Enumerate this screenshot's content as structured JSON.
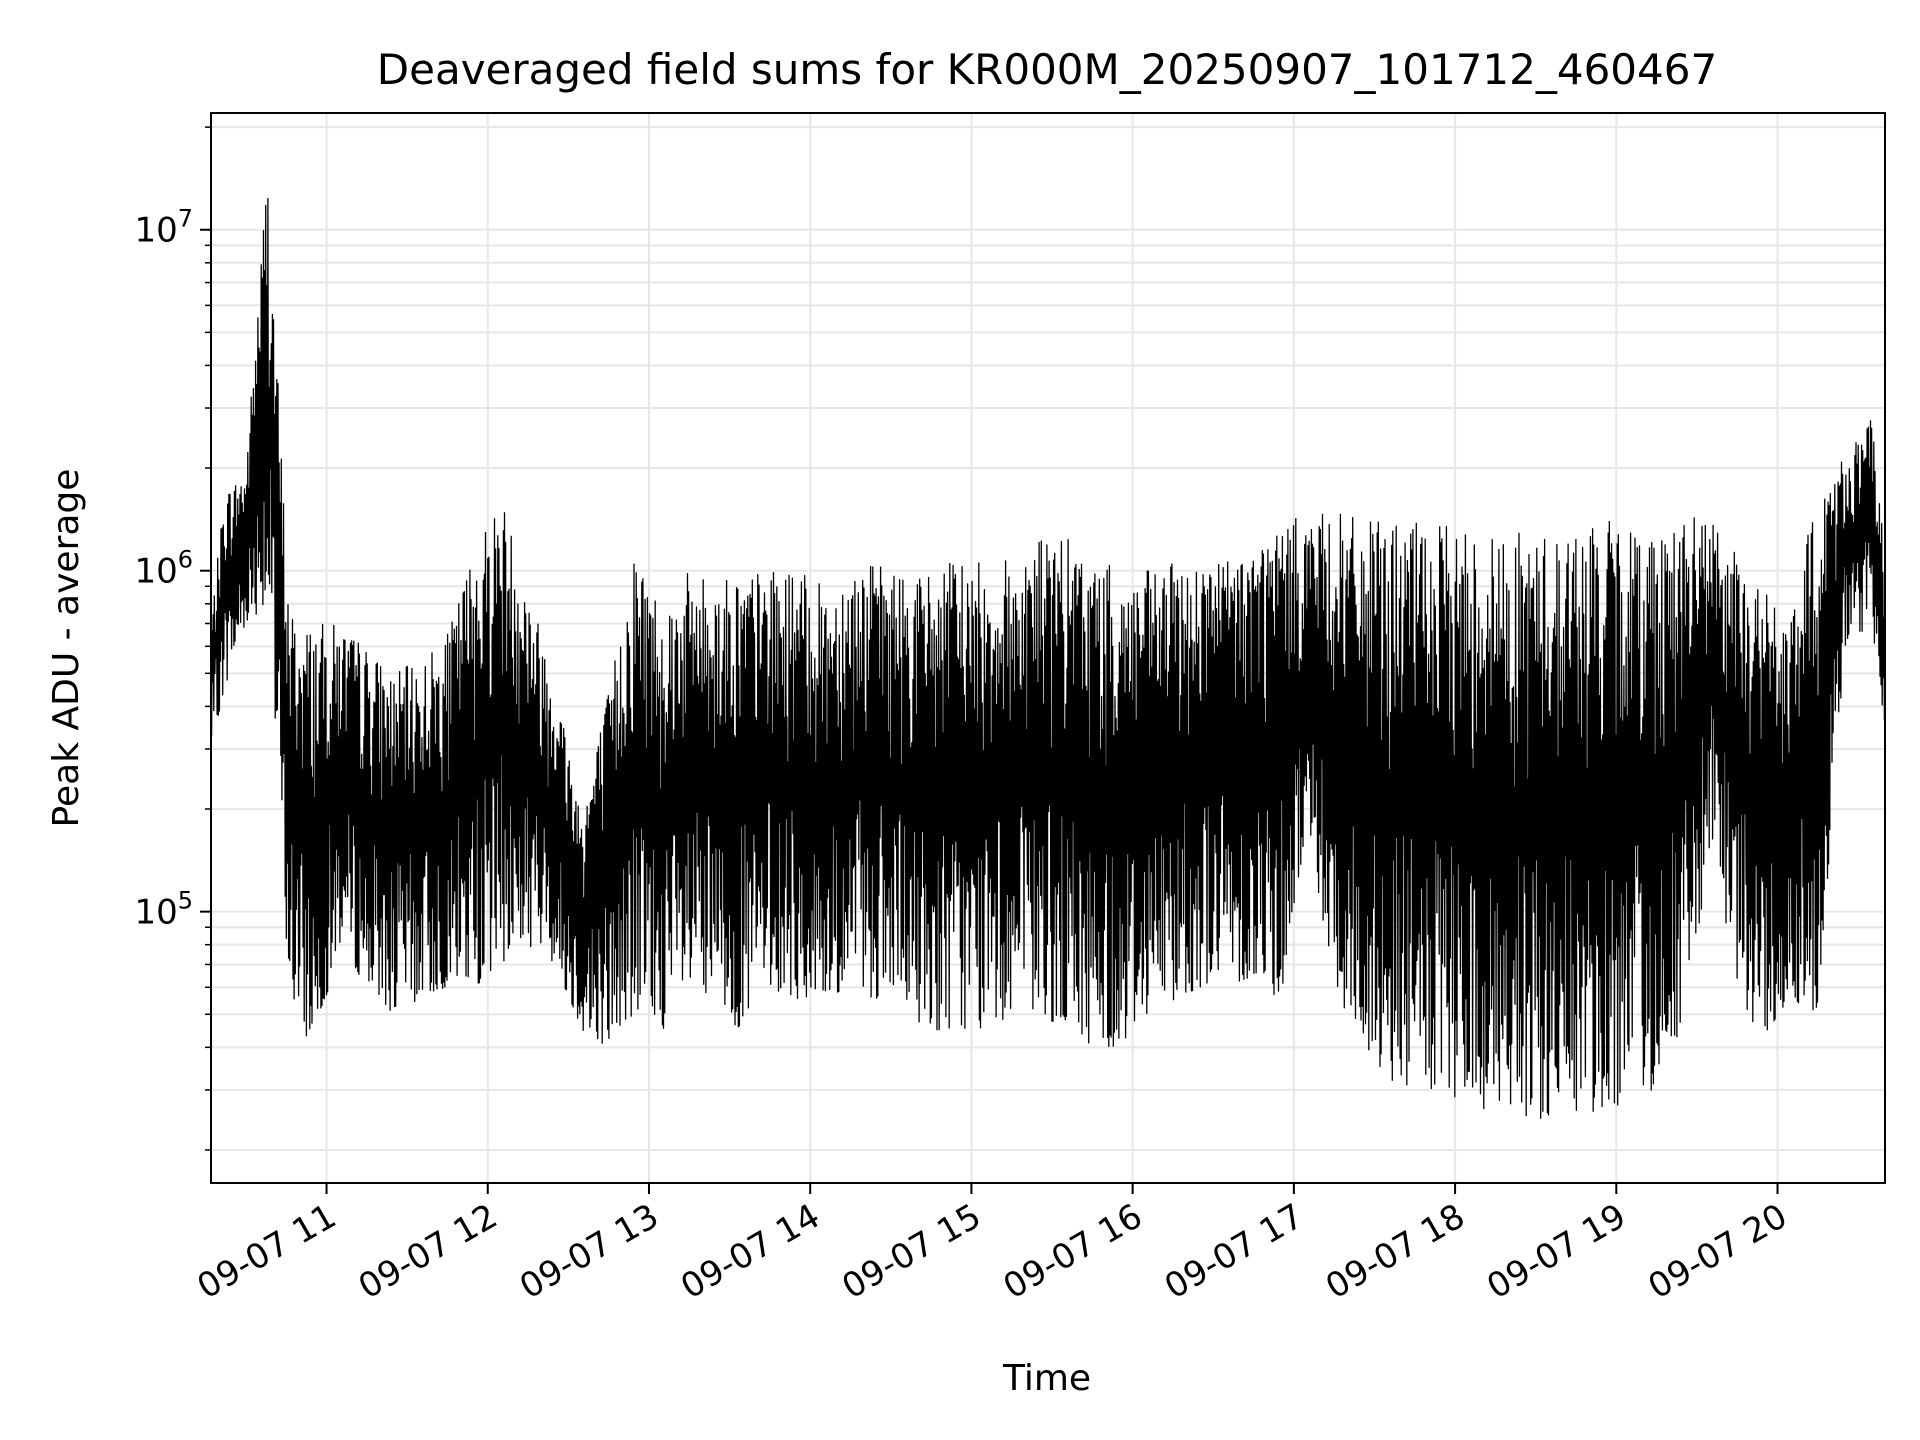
{
  "chart_data": {
    "type": "line",
    "title": "Deaveraged field sums for KR000M_20250907_101712_460467",
    "xlabel": "Time",
    "ylabel": "Peak ADU - average",
    "yscale": "log",
    "grid": true,
    "legend": "none",
    "line_color": "#000000",
    "xlim": [
      "2025-09-07T10:17",
      "2025-09-07T20:40"
    ],
    "ylim": [
      16000,
      22000000
    ],
    "x_ticks": [
      {
        "value": "2025-09-07T11:00",
        "label": "09-07 11"
      },
      {
        "value": "2025-09-07T12:00",
        "label": "09-07 12"
      },
      {
        "value": "2025-09-07T13:00",
        "label": "09-07 13"
      },
      {
        "value": "2025-09-07T14:00",
        "label": "09-07 14"
      },
      {
        "value": "2025-09-07T15:00",
        "label": "09-07 15"
      },
      {
        "value": "2025-09-07T16:00",
        "label": "09-07 16"
      },
      {
        "value": "2025-09-07T17:00",
        "label": "09-07 17"
      },
      {
        "value": "2025-09-07T18:00",
        "label": "09-07 18"
      },
      {
        "value": "2025-09-07T19:00",
        "label": "09-07 19"
      },
      {
        "value": "2025-09-07T20:00",
        "label": "09-07 20"
      }
    ],
    "y_ticks": [
      {
        "value": 100000,
        "base": "10",
        "exp": "5"
      },
      {
        "value": 1000000,
        "base": "10",
        "exp": "6"
      },
      {
        "value": 10000000,
        "base": "10",
        "exp": "7"
      }
    ],
    "series": [
      {
        "x": [
          "2025-09-07T10:17",
          "2025-09-07T10:22",
          "2025-09-07T10:30",
          "2025-09-07T10:38",
          "2025-09-07T10:46",
          "2025-09-07T10:50",
          "2025-09-07T10:55",
          "2025-09-07T11:05",
          "2025-09-07T11:15",
          "2025-09-07T11:25",
          "2025-09-07T11:35",
          "2025-09-07T11:45",
          "2025-09-07T11:55",
          "2025-09-07T12:05",
          "2025-09-07T12:15",
          "2025-09-07T12:25",
          "2025-09-07T12:35",
          "2025-09-07T12:45",
          "2025-09-07T12:55",
          "2025-09-07T13:05",
          "2025-09-07T13:15",
          "2025-09-07T13:25",
          "2025-09-07T13:35",
          "2025-09-07T13:45",
          "2025-09-07T13:55",
          "2025-09-07T14:05",
          "2025-09-07T14:15",
          "2025-09-07T14:25",
          "2025-09-07T14:35",
          "2025-09-07T14:45",
          "2025-09-07T14:55",
          "2025-09-07T15:05",
          "2025-09-07T15:15",
          "2025-09-07T15:25",
          "2025-09-07T15:35",
          "2025-09-07T15:45",
          "2025-09-07T15:55",
          "2025-09-07T16:05",
          "2025-09-07T16:15",
          "2025-09-07T16:25",
          "2025-09-07T16:35",
          "2025-09-07T16:45",
          "2025-09-07T16:55",
          "2025-09-07T17:05",
          "2025-09-07T17:15",
          "2025-09-07T17:25",
          "2025-09-07T17:35",
          "2025-09-07T17:45",
          "2025-09-07T17:55",
          "2025-09-07T18:05",
          "2025-09-07T18:15",
          "2025-09-07T18:25",
          "2025-09-07T18:35",
          "2025-09-07T18:45",
          "2025-09-07T18:55",
          "2025-09-07T19:05",
          "2025-09-07T19:15",
          "2025-09-07T19:25",
          "2025-09-07T19:35",
          "2025-09-07T19:45",
          "2025-09-07T19:55",
          "2025-09-07T20:05",
          "2025-09-07T20:15",
          "2025-09-07T20:25",
          "2025-09-07T20:35",
          "2025-09-07T20:40"
        ],
        "low": [
          300000,
          450000,
          700000,
          800000,
          60000,
          45000,
          40000,
          80000,
          60000,
          50000,
          55000,
          60000,
          60000,
          70000,
          80000,
          70000,
          45000,
          40000,
          50000,
          45000,
          55000,
          50000,
          45000,
          60000,
          55000,
          50000,
          60000,
          55000,
          50000,
          45000,
          45000,
          45000,
          50000,
          50000,
          45000,
          40000,
          40000,
          50000,
          55000,
          60000,
          65000,
          60000,
          55000,
          170000,
          60000,
          40000,
          32000,
          30000,
          28000,
          27000,
          25000,
          25000,
          24000,
          25000,
          26000,
          28000,
          30000,
          45000,
          150000,
          60000,
          40000,
          55000,
          50000,
          600000,
          700000,
          350000
        ],
        "high": [
          700000,
          1700000,
          2000000,
          16000000,
          800000,
          700000,
          700000,
          700000,
          600000,
          500000,
          550000,
          650000,
          1200000,
          1700000,
          900000,
          500000,
          200000,
          450000,
          1200000,
          800000,
          1000000,
          950000,
          1000000,
          1000000,
          1000000,
          900000,
          1050000,
          1050000,
          1000000,
          1000000,
          1100000,
          1050000,
          1100000,
          1300000,
          1250000,
          1100000,
          1000000,
          1000000,
          1050000,
          1100000,
          1100000,
          1250000,
          1400000,
          1450000,
          1500000,
          1400000,
          1400000,
          1400000,
          1350000,
          1350000,
          1300000,
          1300000,
          1300000,
          1350000,
          1400000,
          1400000,
          1400000,
          1450000,
          1450000,
          1100000,
          900000,
          700000,
          1800000,
          2200000,
          2800000,
          1100000
        ]
      }
    ]
  }
}
